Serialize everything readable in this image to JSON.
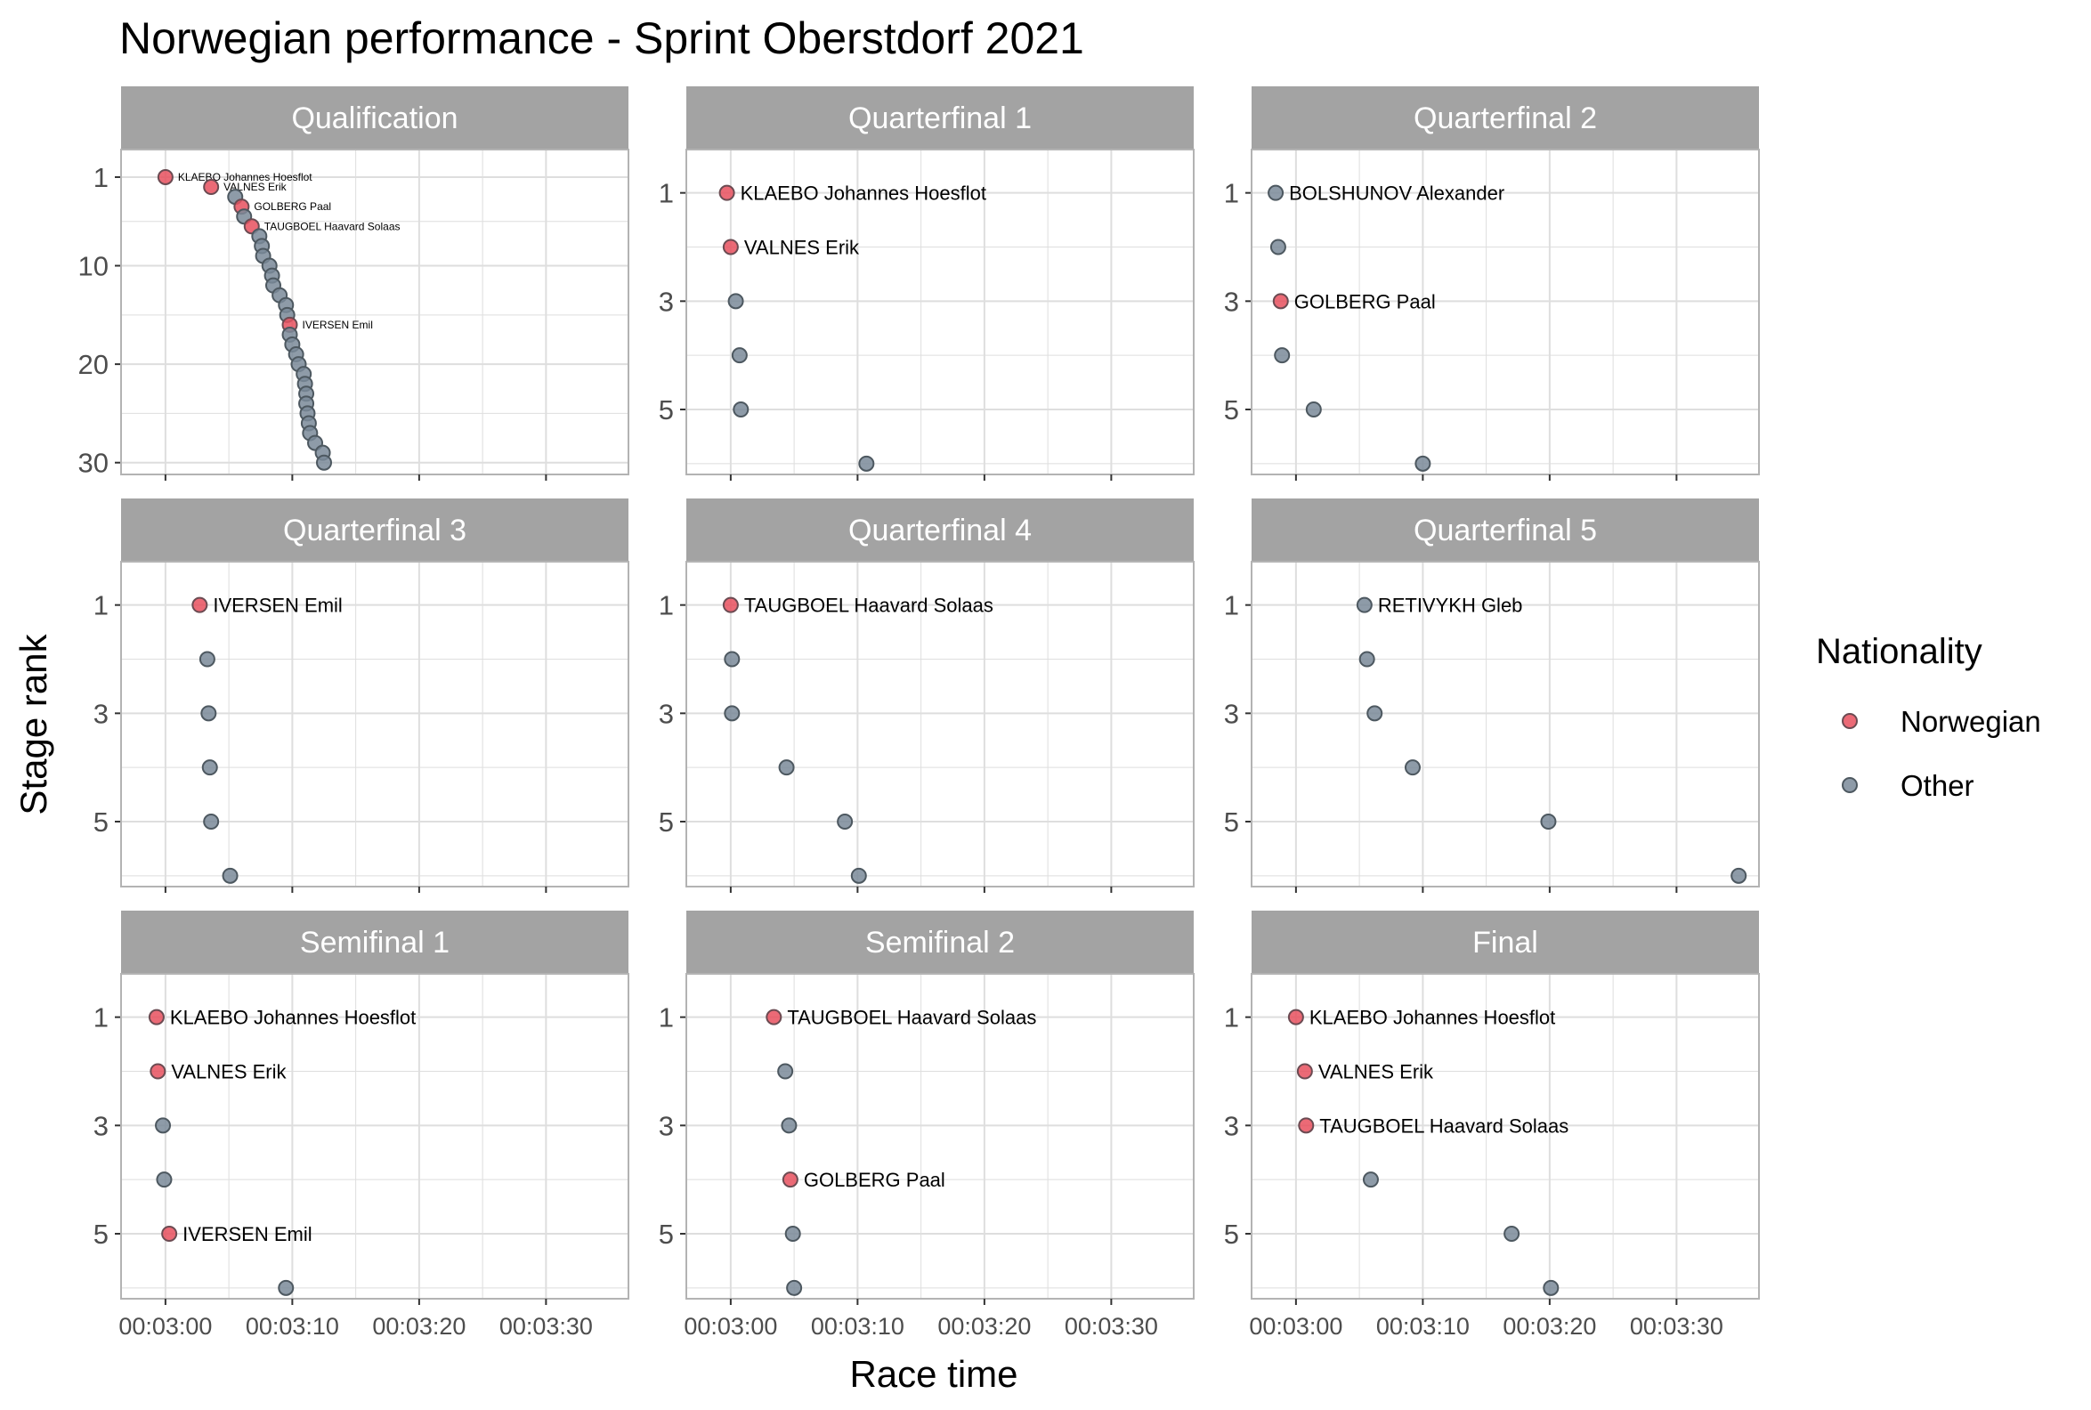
{
  "title": "Norwegian performance - Sprint Oberstdorf 2021",
  "xlabel": "Race time",
  "ylabel": "Stage rank",
  "legend": {
    "title": "Nationality",
    "items": [
      {
        "label": "Norwegian",
        "color": "#e8505e"
      },
      {
        "label": "Other",
        "color": "#7a8a99"
      }
    ]
  },
  "colors": {
    "norwegian": "#e8505e",
    "other": "#7a8a99",
    "strip_bg": "#a3a3a3",
    "strip_text": "#ffffff",
    "grid": "#dedede",
    "panel_border": "#b3b3b3"
  },
  "chart_data": {
    "type": "scatter",
    "x_unit": "race time (seconds)",
    "xlim_seconds": [
      176.5,
      216.5
    ],
    "x_ticks": [
      {
        "value": 180,
        "label": "00:03:00"
      },
      {
        "value": 190,
        "label": "00:03:10"
      },
      {
        "value": 200,
        "label": "00:03:20"
      },
      {
        "value": 210,
        "label": "00:03:30"
      }
    ],
    "y_reversed": true,
    "panels": [
      {
        "name": "Qualification",
        "ylim": [
          31.2,
          -1.8
        ],
        "y_ticks": [
          1,
          10,
          20,
          30
        ],
        "small_labels": true,
        "points": [
          {
            "rank": 1,
            "time": 180.0,
            "nat": "Norwegian",
            "label": "KLAEBO Johannes Hoesflot"
          },
          {
            "rank": 2,
            "time": 183.6,
            "nat": "Norwegian",
            "label": "VALNES Erik"
          },
          {
            "rank": 3,
            "time": 185.5,
            "nat": "Other"
          },
          {
            "rank": 4,
            "time": 186.0,
            "nat": "Norwegian",
            "label": "GOLBERG Paal"
          },
          {
            "rank": 5,
            "time": 186.2,
            "nat": "Other"
          },
          {
            "rank": 6,
            "time": 186.8,
            "nat": "Norwegian",
            "label": "TAUGBOEL Haavard Solaas"
          },
          {
            "rank": 7,
            "time": 187.4,
            "nat": "Other"
          },
          {
            "rank": 8,
            "time": 187.6,
            "nat": "Other"
          },
          {
            "rank": 9,
            "time": 187.7,
            "nat": "Other"
          },
          {
            "rank": 10,
            "time": 188.2,
            "nat": "Other"
          },
          {
            "rank": 11,
            "time": 188.4,
            "nat": "Other"
          },
          {
            "rank": 12,
            "time": 188.5,
            "nat": "Other"
          },
          {
            "rank": 13,
            "time": 189.0,
            "nat": "Other"
          },
          {
            "rank": 14,
            "time": 189.5,
            "nat": "Other"
          },
          {
            "rank": 15,
            "time": 189.6,
            "nat": "Other"
          },
          {
            "rank": 16,
            "time": 189.8,
            "nat": "Norwegian",
            "label": "IVERSEN Emil"
          },
          {
            "rank": 17,
            "time": 189.8,
            "nat": "Other"
          },
          {
            "rank": 18,
            "time": 190.0,
            "nat": "Other"
          },
          {
            "rank": 19,
            "time": 190.3,
            "nat": "Other"
          },
          {
            "rank": 20,
            "time": 190.5,
            "nat": "Other"
          },
          {
            "rank": 21,
            "time": 190.9,
            "nat": "Other"
          },
          {
            "rank": 22,
            "time": 191.0,
            "nat": "Other"
          },
          {
            "rank": 23,
            "time": 191.1,
            "nat": "Other"
          },
          {
            "rank": 24,
            "time": 191.1,
            "nat": "Other"
          },
          {
            "rank": 25,
            "time": 191.2,
            "nat": "Other"
          },
          {
            "rank": 26,
            "time": 191.3,
            "nat": "Other"
          },
          {
            "rank": 27,
            "time": 191.4,
            "nat": "Other"
          },
          {
            "rank": 28,
            "time": 191.8,
            "nat": "Other"
          },
          {
            "rank": 29,
            "time": 192.4,
            "nat": "Other"
          },
          {
            "rank": 30,
            "time": 192.5,
            "nat": "Other"
          }
        ]
      },
      {
        "name": "Quarterfinal 1",
        "ylim": [
          6.2,
          0.2
        ],
        "y_ticks": [
          1,
          3,
          5
        ],
        "points": [
          {
            "rank": 1,
            "time": 179.7,
            "nat": "Norwegian",
            "label": "KLAEBO Johannes Hoesflot"
          },
          {
            "rank": 2,
            "time": 180.0,
            "nat": "Norwegian",
            "label": "VALNES Erik"
          },
          {
            "rank": 3,
            "time": 180.4,
            "nat": "Other"
          },
          {
            "rank": 4,
            "time": 180.7,
            "nat": "Other"
          },
          {
            "rank": 5,
            "time": 180.8,
            "nat": "Other"
          },
          {
            "rank": 6,
            "time": 190.7,
            "nat": "Other"
          }
        ]
      },
      {
        "name": "Quarterfinal 2",
        "ylim": [
          6.2,
          0.2
        ],
        "y_ticks": [
          1,
          3,
          5
        ],
        "points": [
          {
            "rank": 1,
            "time": 178.4,
            "nat": "Other",
            "label": "BOLSHUNOV Alexander"
          },
          {
            "rank": 2,
            "time": 178.6,
            "nat": "Other"
          },
          {
            "rank": 3,
            "time": 178.8,
            "nat": "Norwegian",
            "label": "GOLBERG Paal"
          },
          {
            "rank": 4,
            "time": 178.9,
            "nat": "Other"
          },
          {
            "rank": 5,
            "time": 181.4,
            "nat": "Other"
          },
          {
            "rank": 6,
            "time": 190.0,
            "nat": "Other"
          }
        ]
      },
      {
        "name": "Quarterfinal 3",
        "ylim": [
          6.2,
          0.2
        ],
        "y_ticks": [
          1,
          3,
          5
        ],
        "points": [
          {
            "rank": 1,
            "time": 182.7,
            "nat": "Norwegian",
            "label": "IVERSEN Emil"
          },
          {
            "rank": 2,
            "time": 183.3,
            "nat": "Other"
          },
          {
            "rank": 3,
            "time": 183.4,
            "nat": "Other"
          },
          {
            "rank": 4,
            "time": 183.5,
            "nat": "Other"
          },
          {
            "rank": 5,
            "time": 183.6,
            "nat": "Other"
          },
          {
            "rank": 6,
            "time": 185.1,
            "nat": "Other"
          }
        ]
      },
      {
        "name": "Quarterfinal 4",
        "ylim": [
          6.2,
          0.2
        ],
        "y_ticks": [
          1,
          3,
          5
        ],
        "points": [
          {
            "rank": 1,
            "time": 180.0,
            "nat": "Norwegian",
            "label": "TAUGBOEL Haavard Solaas"
          },
          {
            "rank": 2,
            "time": 180.1,
            "nat": "Other"
          },
          {
            "rank": 3,
            "time": 180.1,
            "nat": "Other"
          },
          {
            "rank": 4,
            "time": 184.4,
            "nat": "Other"
          },
          {
            "rank": 5,
            "time": 189.0,
            "nat": "Other"
          },
          {
            "rank": 6,
            "time": 190.1,
            "nat": "Other"
          }
        ]
      },
      {
        "name": "Quarterfinal 5",
        "ylim": [
          6.2,
          0.2
        ],
        "y_ticks": [
          1,
          3,
          5
        ],
        "points": [
          {
            "rank": 1,
            "time": 185.4,
            "nat": "Other",
            "label": "RETIVYKH Gleb"
          },
          {
            "rank": 2,
            "time": 185.6,
            "nat": "Other"
          },
          {
            "rank": 3,
            "time": 186.2,
            "nat": "Other"
          },
          {
            "rank": 4,
            "time": 189.2,
            "nat": "Other"
          },
          {
            "rank": 5,
            "time": 199.9,
            "nat": "Other"
          },
          {
            "rank": 6,
            "time": 214.9,
            "nat": "Other"
          }
        ]
      },
      {
        "name": "Semifinal 1",
        "ylim": [
          6.2,
          0.2
        ],
        "y_ticks": [
          1,
          3,
          5
        ],
        "points": [
          {
            "rank": 1,
            "time": 179.3,
            "nat": "Norwegian",
            "label": "KLAEBO Johannes Hoesflot"
          },
          {
            "rank": 2,
            "time": 179.4,
            "nat": "Norwegian",
            "label": "VALNES Erik"
          },
          {
            "rank": 3,
            "time": 179.8,
            "nat": "Other"
          },
          {
            "rank": 4,
            "time": 179.9,
            "nat": "Other"
          },
          {
            "rank": 5,
            "time": 180.3,
            "nat": "Norwegian",
            "label": "IVERSEN Emil"
          },
          {
            "rank": 6,
            "time": 189.5,
            "nat": "Other"
          }
        ]
      },
      {
        "name": "Semifinal 2",
        "ylim": [
          6.2,
          0.2
        ],
        "y_ticks": [
          1,
          3,
          5
        ],
        "points": [
          {
            "rank": 1,
            "time": 183.4,
            "nat": "Norwegian",
            "label": "TAUGBOEL Haavard Solaas"
          },
          {
            "rank": 2,
            "time": 184.3,
            "nat": "Other"
          },
          {
            "rank": 3,
            "time": 184.6,
            "nat": "Other"
          },
          {
            "rank": 4,
            "time": 184.7,
            "nat": "Norwegian",
            "label": "GOLBERG Paal"
          },
          {
            "rank": 5,
            "time": 184.9,
            "nat": "Other"
          },
          {
            "rank": 6,
            "time": 185.0,
            "nat": "Other"
          }
        ]
      },
      {
        "name": "Final",
        "ylim": [
          6.2,
          0.2
        ],
        "y_ticks": [
          1,
          3,
          5
        ],
        "points": [
          {
            "rank": 1,
            "time": 180.0,
            "nat": "Norwegian",
            "label": "KLAEBO Johannes Hoesflot"
          },
          {
            "rank": 2,
            "time": 180.7,
            "nat": "Norwegian",
            "label": "VALNES Erik"
          },
          {
            "rank": 3,
            "time": 180.8,
            "nat": "Norwegian",
            "label": "TAUGBOEL Haavard Solaas"
          },
          {
            "rank": 4,
            "time": 185.9,
            "nat": "Other"
          },
          {
            "rank": 5,
            "time": 197.0,
            "nat": "Other"
          },
          {
            "rank": 6,
            "time": 200.1,
            "nat": "Other"
          }
        ]
      }
    ]
  }
}
